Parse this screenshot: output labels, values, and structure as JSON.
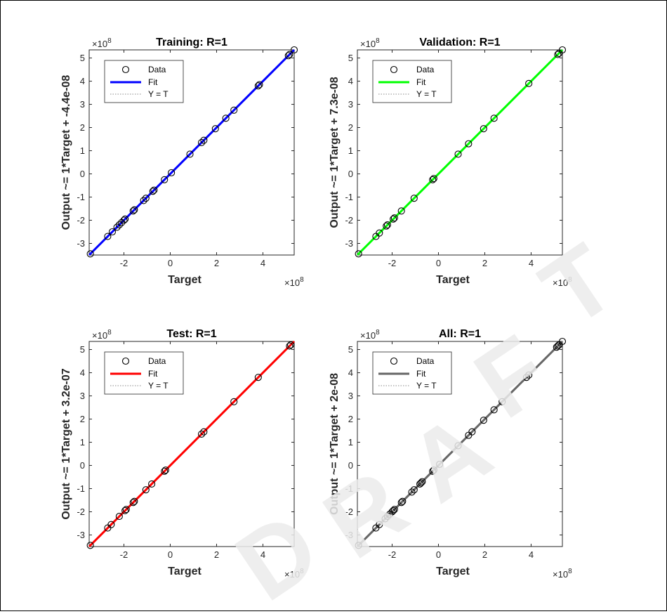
{
  "multiplier_base": "×10",
  "multiplier_exp": "8",
  "chart_data": [
    {
      "type": "scatter",
      "title": "Training: R=1",
      "xlabel": "Target",
      "ylabel": "Output ~= 1*Target + -4.4e-08",
      "xlim": [
        -3.5,
        5.35
      ],
      "ylim": [
        -3.5,
        5.35
      ],
      "xticks": [
        -2,
        0,
        2,
        4
      ],
      "yticks": [
        -3,
        -2,
        -1,
        0,
        1,
        2,
        3,
        4,
        5
      ],
      "xtick_labels": [
        "-2",
        "0",
        "2",
        "4"
      ],
      "ytick_labels": [
        "-3",
        "-2",
        "-1",
        "0",
        "1",
        "2",
        "3",
        "4",
        "5"
      ],
      "scale_factor": "1e8",
      "fit_color": "#0000ff",
      "legend": [
        "Data",
        "Fit",
        "Y = T"
      ],
      "legend_position": "top-left",
      "fit_line": [
        [
          -3.5,
          -3.5
        ],
        [
          5.35,
          5.35
        ]
      ],
      "data_points": [
        -3.45,
        -2.7,
        -2.5,
        -2.3,
        -2.2,
        -2.1,
        -2.0,
        -1.95,
        -1.6,
        -1.55,
        -1.15,
        -1.05,
        -0.75,
        -0.7,
        -0.25,
        0.05,
        0.85,
        1.35,
        1.45,
        1.95,
        2.4,
        2.75,
        3.8,
        3.85,
        5.1,
        5.15,
        5.35
      ]
    },
    {
      "type": "scatter",
      "title": "Validation: R=1",
      "xlabel": "Target",
      "ylabel": "Output ~= 1*Target + 7.3e-08",
      "xlim": [
        -3.5,
        5.35
      ],
      "ylim": [
        -3.5,
        5.35
      ],
      "xticks": [
        -2,
        0,
        2,
        4
      ],
      "yticks": [
        -3,
        -2,
        -1,
        0,
        1,
        2,
        3,
        4,
        5
      ],
      "xtick_labels": [
        "-2",
        "0",
        "2",
        "4"
      ],
      "ytick_labels": [
        "-3",
        "-2",
        "-1",
        "0",
        "1",
        "2",
        "3",
        "4",
        "5"
      ],
      "scale_factor": "1e8",
      "fit_color": "#00ff00",
      "legend": [
        "Data",
        "Fit",
        "Y = T"
      ],
      "legend_position": "top-left",
      "fit_line": [
        [
          -3.5,
          -3.5
        ],
        [
          5.35,
          5.35
        ]
      ],
      "data_points": [
        -3.45,
        -2.7,
        -2.55,
        -2.25,
        -2.2,
        -1.95,
        -1.9,
        -1.6,
        -1.05,
        -0.25,
        -0.2,
        0.85,
        1.3,
        1.95,
        2.4,
        3.9,
        5.15,
        5.2,
        5.35
      ]
    },
    {
      "type": "scatter",
      "title": "Test: R=1",
      "xlabel": "Target",
      "ylabel": "Output ~= 1*Target + 3.2e-07",
      "xlim": [
        -3.5,
        5.35
      ],
      "ylim": [
        -3.5,
        5.35
      ],
      "xticks": [
        -2,
        0,
        2,
        4
      ],
      "yticks": [
        -3,
        -2,
        -1,
        0,
        1,
        2,
        3,
        4,
        5
      ],
      "xtick_labels": [
        "-2",
        "0",
        "2",
        "4"
      ],
      "ytick_labels": [
        "-3",
        "-2",
        "-1",
        "0",
        "1",
        "2",
        "3",
        "4",
        "5"
      ],
      "scale_factor": "1e8",
      "fit_color": "#ff0000",
      "legend": [
        "Data",
        "Fit",
        "Y = T"
      ],
      "legend_position": "top-left",
      "fit_line": [
        [
          -3.5,
          -3.5
        ],
        [
          5.35,
          5.35
        ]
      ],
      "data_points": [
        -3.45,
        -2.7,
        -2.55,
        -2.2,
        -1.95,
        -1.9,
        -1.6,
        -1.55,
        -1.05,
        -0.8,
        -0.25,
        -0.2,
        1.35,
        1.45,
        2.75,
        3.8,
        5.15,
        5.2
      ]
    },
    {
      "type": "scatter",
      "title": "All: R=1",
      "xlabel": "Target",
      "ylabel": "Output ~= 1*Target + 2e-08",
      "xlim": [
        -3.5,
        5.35
      ],
      "ylim": [
        -3.5,
        5.35
      ],
      "xticks": [
        -2,
        0,
        2,
        4
      ],
      "yticks": [
        -3,
        -2,
        -1,
        0,
        1,
        2,
        3,
        4,
        5
      ],
      "xtick_labels": [
        "-2",
        "0",
        "2",
        "4"
      ],
      "ytick_labels": [
        "-3",
        "-2",
        "-1",
        "0",
        "1",
        "2",
        "3",
        "4",
        "5"
      ],
      "scale_factor": "1e8",
      "fit_color": "#666666",
      "legend": [
        "Data",
        "Fit",
        "Y = T"
      ],
      "legend_position": "top-left",
      "fit_line": [
        [
          -3.5,
          -3.5
        ],
        [
          5.35,
          5.35
        ]
      ],
      "data_points": [
        -3.45,
        -2.7,
        -2.55,
        -2.3,
        -2.2,
        -2.1,
        -2.0,
        -1.95,
        -1.9,
        -1.6,
        -1.55,
        -1.15,
        -1.05,
        -0.8,
        -0.75,
        -0.7,
        -0.25,
        -0.2,
        0.05,
        0.85,
        1.3,
        1.45,
        1.95,
        2.4,
        2.75,
        3.8,
        3.9,
        5.1,
        5.15,
        5.2,
        5.35
      ]
    }
  ]
}
